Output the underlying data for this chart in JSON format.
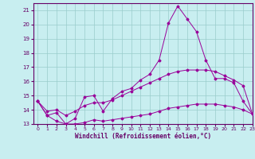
{
  "xlabel": "Windchill (Refroidissement éolien,°C)",
  "bg_color": "#c8eef0",
  "line_color": "#990099",
  "grid_color": "#99cccc",
  "xlim": [
    -0.5,
    23
  ],
  "ylim": [
    13,
    21.5
  ],
  "yticks": [
    13,
    14,
    15,
    16,
    17,
    18,
    19,
    20,
    21
  ],
  "xticks": [
    0,
    1,
    2,
    3,
    4,
    5,
    6,
    7,
    8,
    9,
    10,
    11,
    12,
    13,
    14,
    15,
    16,
    17,
    18,
    19,
    20,
    21,
    22,
    23
  ],
  "hours": [
    0,
    1,
    2,
    3,
    4,
    5,
    6,
    7,
    8,
    9,
    10,
    11,
    12,
    13,
    14,
    15,
    16,
    17,
    18,
    19,
    20,
    21,
    22,
    23
  ],
  "temp": [
    14.6,
    13.6,
    13.8,
    13.0,
    13.4,
    14.9,
    15.0,
    13.9,
    14.8,
    15.3,
    15.5,
    16.1,
    16.5,
    17.5,
    20.1,
    21.3,
    20.4,
    19.5,
    17.5,
    16.2,
    16.2,
    15.9,
    14.6,
    13.7
  ],
  "line2": [
    14.6,
    13.9,
    14.0,
    13.6,
    13.9,
    14.3,
    14.5,
    14.5,
    14.7,
    15.0,
    15.3,
    15.6,
    15.9,
    16.2,
    16.5,
    16.7,
    16.8,
    16.8,
    16.8,
    16.7,
    16.4,
    16.1,
    15.7,
    13.7
  ],
  "line3": [
    14.6,
    13.6,
    13.2,
    13.0,
    13.0,
    13.1,
    13.3,
    13.2,
    13.3,
    13.4,
    13.5,
    13.6,
    13.7,
    13.9,
    14.1,
    14.2,
    14.3,
    14.4,
    14.4,
    14.4,
    14.3,
    14.2,
    14.0,
    13.7
  ]
}
